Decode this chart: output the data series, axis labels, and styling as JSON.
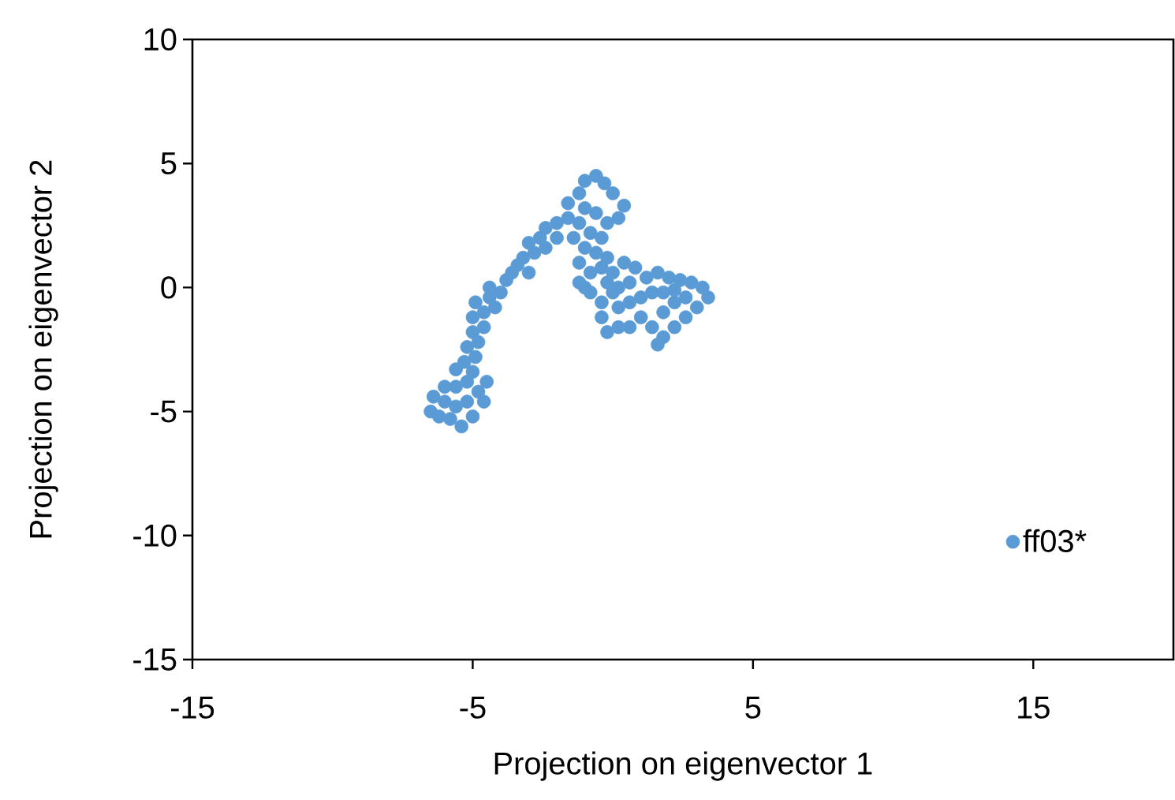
{
  "chart_data": {
    "type": "scatter",
    "xlabel": "Projection on eigenvector 1",
    "ylabel": "Projection on eigenvector 2",
    "xlim": [
      -15,
      20
    ],
    "ylim": [
      -15,
      10
    ],
    "xticks": [
      -15,
      -5,
      5,
      15
    ],
    "yticks": [
      -15,
      -10,
      -5,
      0,
      5,
      10
    ],
    "grid": false,
    "legend": "right",
    "series": [
      {
        "name": "ff03*",
        "color": "#5b9bd5",
        "x": [
          -6.5,
          -6.2,
          -5.8,
          -5.4,
          -5.0,
          -4.6,
          -4.5,
          -6.4,
          -6.0,
          -5.6,
          -5.2,
          -4.8,
          -6.0,
          -5.6,
          -5.2,
          -5.0,
          -5.6,
          -5.3,
          -4.9,
          -5.2,
          -4.8,
          -5.0,
          -4.6,
          -5.0,
          -4.6,
          -4.9,
          -4.4,
          -4.2,
          -4.0,
          -4.4,
          -3.8,
          -3.6,
          -3.4,
          -3.0,
          -3.2,
          -2.8,
          -3.0,
          -2.6,
          -2.4,
          -2.4,
          -2.0,
          -2.0,
          -1.6,
          -1.6,
          -1.2,
          -1.0,
          -0.6,
          -0.3,
          0.0,
          0.4,
          0.2,
          -0.2,
          -0.6,
          -1.0,
          -1.2,
          -0.8,
          -0.4,
          -1.4,
          -1.0,
          -0.6,
          -0.2,
          -1.2,
          -0.8,
          -0.4,
          0.0,
          0.4,
          0.8,
          0.6,
          0.2,
          -0.2,
          -1.2,
          -0.8,
          -0.4,
          -0.4,
          -0.2,
          0.2,
          0.6,
          1.0,
          0.2,
          0.6,
          1.0,
          1.4,
          1.2,
          1.6,
          2.0,
          2.4,
          2.8,
          3.2,
          3.4,
          3.0,
          2.6,
          2.2,
          1.8,
          1.6,
          1.4,
          1.8,
          2.2,
          2.6,
          1.8,
          2.2,
          -1.0,
          0.0
        ],
        "values": [
          -5.0,
          -5.2,
          -5.3,
          -5.6,
          -5.2,
          -4.6,
          -3.8,
          -4.4,
          -4.6,
          -4.8,
          -4.6,
          -4.2,
          -4.0,
          -4.0,
          -3.8,
          -3.4,
          -3.3,
          -3.0,
          -2.8,
          -2.4,
          -2.2,
          -1.8,
          -1.6,
          -1.2,
          -1.0,
          -0.6,
          -0.4,
          -0.8,
          -0.2,
          0.0,
          0.3,
          0.6,
          0.9,
          0.6,
          1.2,
          1.4,
          1.8,
          2.0,
          1.6,
          2.4,
          2.6,
          2.0,
          2.8,
          3.4,
          3.8,
          4.3,
          4.5,
          4.2,
          3.8,
          3.3,
          2.8,
          2.6,
          3.0,
          3.2,
          2.6,
          2.2,
          2.0,
          2.0,
          1.6,
          1.4,
          1.2,
          1.0,
          0.6,
          0.8,
          0.6,
          1.0,
          0.8,
          0.2,
          0.0,
          0.2,
          0.2,
          -0.2,
          -0.6,
          -1.2,
          -1.8,
          -1.6,
          -1.6,
          -1.2,
          -0.8,
          -0.6,
          -0.4,
          -0.2,
          0.4,
          0.6,
          0.4,
          0.3,
          0.2,
          0.0,
          -0.4,
          -0.8,
          -1.2,
          -1.6,
          -2.0,
          -2.3,
          -1.6,
          -1.0,
          -0.6,
          -0.4,
          -0.2,
          -0.1,
          0.0,
          -0.2
        ]
      }
    ]
  }
}
